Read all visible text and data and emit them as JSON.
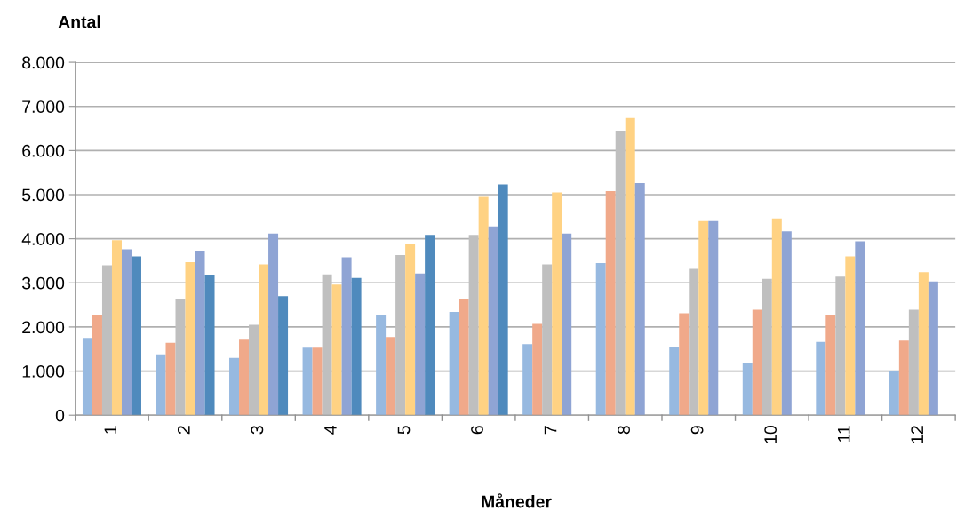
{
  "chart_data": {
    "type": "bar",
    "ylabel": "Antal",
    "xlabel": "Måneder",
    "categories": [
      "1",
      "2",
      "3",
      "4",
      "5",
      "6",
      "7",
      "8",
      "9",
      "10",
      "11",
      "12"
    ],
    "series": [
      {
        "color": "#97b9e0",
        "values": [
          1750,
          1380,
          1300,
          1530,
          2280,
          2340,
          1610,
          3450,
          1540,
          1190,
          1660,
          1010
        ]
      },
      {
        "color": "#f0a98a",
        "values": [
          2280,
          1640,
          1710,
          1530,
          1770,
          2640,
          2070,
          5080,
          2310,
          2390,
          2280,
          1690
        ]
      },
      {
        "color": "#bfbfbf",
        "values": [
          3400,
          2640,
          2050,
          3190,
          3630,
          4090,
          3420,
          6450,
          3320,
          3090,
          3140,
          2390
        ]
      },
      {
        "color": "#ffd283",
        "values": [
          3970,
          3470,
          3420,
          2960,
          3890,
          4950,
          5050,
          6740,
          4400,
          4460,
          3600,
          3240
        ]
      },
      {
        "color": "#8fa4d4",
        "values": [
          3760,
          3730,
          4120,
          3580,
          3210,
          4280,
          4120,
          5260,
          4400,
          4170,
          3940,
          3030
        ]
      },
      {
        "color": "#4f8abd",
        "values": [
          3600,
          3170,
          2700,
          3110,
          4090,
          5230,
          null,
          null,
          null,
          null,
          null,
          null
        ]
      }
    ],
    "ylim": [
      0,
      8000
    ],
    "yticks": [
      0,
      {
        "value": 1000,
        "label": "1.000"
      },
      {
        "value": 2000,
        "label": "2.000"
      },
      {
        "value": 3000,
        "label": "3.000"
      },
      {
        "value": 4000,
        "label": "4.000"
      },
      {
        "value": 5000,
        "label": "5.000"
      },
      {
        "value": 6000,
        "label": "6.000"
      },
      {
        "value": 7000,
        "label": "7.000"
      },
      {
        "value": 8000,
        "label": "8.000"
      }
    ],
    "grid": "y"
  }
}
